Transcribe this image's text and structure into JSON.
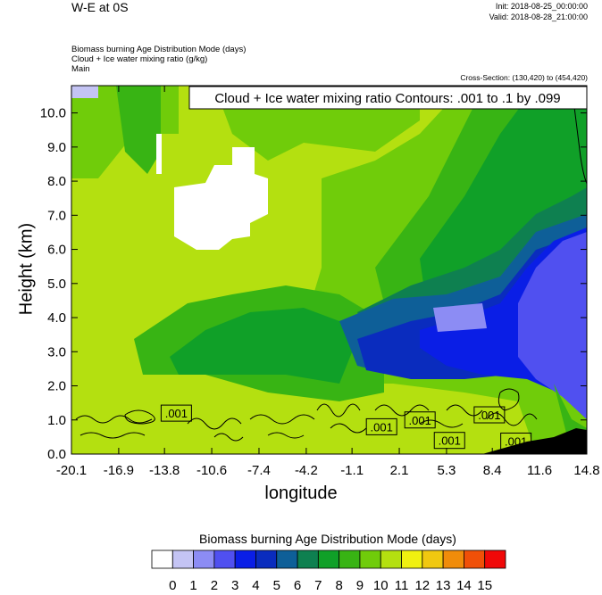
{
  "header": {
    "title": "W-E at 0S",
    "init": "Init: 2018-08-25_00:00:00",
    "valid": "Valid: 2018-08-28_21:00:00",
    "fill_field": "Biomass burning Age Distribution Mode   (days)",
    "contour_field": "Cloud + Ice water mixing ratio   (g/kg)",
    "group": "Main",
    "cross_section": "Cross-Section: (130,420) to (454,420)"
  },
  "chart_data": {
    "type": "heatmap",
    "contour_label": "Cloud + Ice water mixing ratio Contours: .001 to .1 by .099",
    "xlabel": "longitude",
    "ylabel": "Height (km)",
    "x_ticks": [
      "-20.1",
      "-16.9",
      "-13.8",
      "-10.6",
      "-7.4",
      "-4.2",
      "-1.1",
      "2.1",
      "5.3",
      "8.4",
      "11.6",
      "14.8"
    ],
    "y_ticks": [
      "0.0",
      "1.0",
      "2.0",
      "3.0",
      "4.0",
      "5.0",
      "6.0",
      "7.0",
      "8.0",
      "9.0",
      "10.0"
    ],
    "xlim": [
      -20.1,
      14.8
    ],
    "ylim": [
      0,
      10.8
    ],
    "contour_marker_labels": [
      {
        "text": ".001",
        "x": -13.0,
        "y": 1.2
      },
      {
        "text": ".001",
        "x": 0.9,
        "y": 0.8
      },
      {
        "text": ".001",
        "x": 3.5,
        "y": 1.0
      },
      {
        "text": ".001",
        "x": 8.2,
        "y": 1.15
      },
      {
        "text": ".001",
        "x": 5.5,
        "y": 0.4
      },
      {
        "text": ".001",
        "x": 10.0,
        "y": 0.38
      }
    ],
    "colorbar": {
      "title": "Biomass burning Age Distribution Mode  (days)",
      "labels": [
        "0",
        "1",
        "2",
        "3",
        "4",
        "5",
        "6",
        "7",
        "8",
        "9",
        "10",
        "11",
        "12",
        "13",
        "14",
        "15"
      ],
      "colors": [
        "#ffffff",
        "#c4c4f4",
        "#8c8cf4",
        "#5050f0",
        "#0a1ee6",
        "#0a2cbe",
        "#0e5f98",
        "#0e8050",
        "#10a028",
        "#38b414",
        "#70cc0a",
        "#b4e010",
        "#f0f010",
        "#f0c810",
        "#f08c0a",
        "#f05008",
        "#f00808"
      ]
    }
  }
}
